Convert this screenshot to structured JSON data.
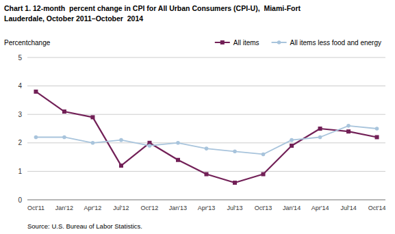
{
  "chart_data": {
    "type": "line",
    "title": [
      "Chart 1. 12-month  percent change in CPI for All Urban Consumers (CPI-U),  Miami-Fort",
      "Lauderdale, October 2011–October  2014"
    ],
    "y_label": "Percentchange",
    "annotations": [
      "Source: U.S. Bureau of Labor Statistics."
    ],
    "categories": [
      "Oct'11",
      "Jan'12",
      "Apr'12",
      "Jul'12",
      "Oct'12",
      "Jan'13",
      "Apr'13",
      "Jul'13",
      "Oct'13",
      "Jan'14",
      "Apr'14",
      "Jul'14",
      "Oct'14"
    ],
    "series": [
      {
        "name": "All items",
        "color": "#722057",
        "marker": "square",
        "values": [
          3.8,
          3.1,
          2.9,
          1.2,
          2.0,
          1.4,
          0.9,
          0.6,
          0.9,
          1.9,
          2.5,
          2.4,
          2.2
        ]
      },
      {
        "name": "All items less food and energy",
        "color": "#a8c4dc",
        "marker": "circle",
        "values": [
          2.2,
          2.2,
          2.0,
          2.1,
          1.9,
          2.0,
          1.8,
          1.7,
          1.6,
          2.1,
          2.2,
          2.6,
          2.5
        ]
      }
    ],
    "ylim": [
      0,
      5
    ],
    "yticks": [
      0,
      1,
      2,
      3,
      4,
      5
    ],
    "grid": "y",
    "legend": "top"
  }
}
